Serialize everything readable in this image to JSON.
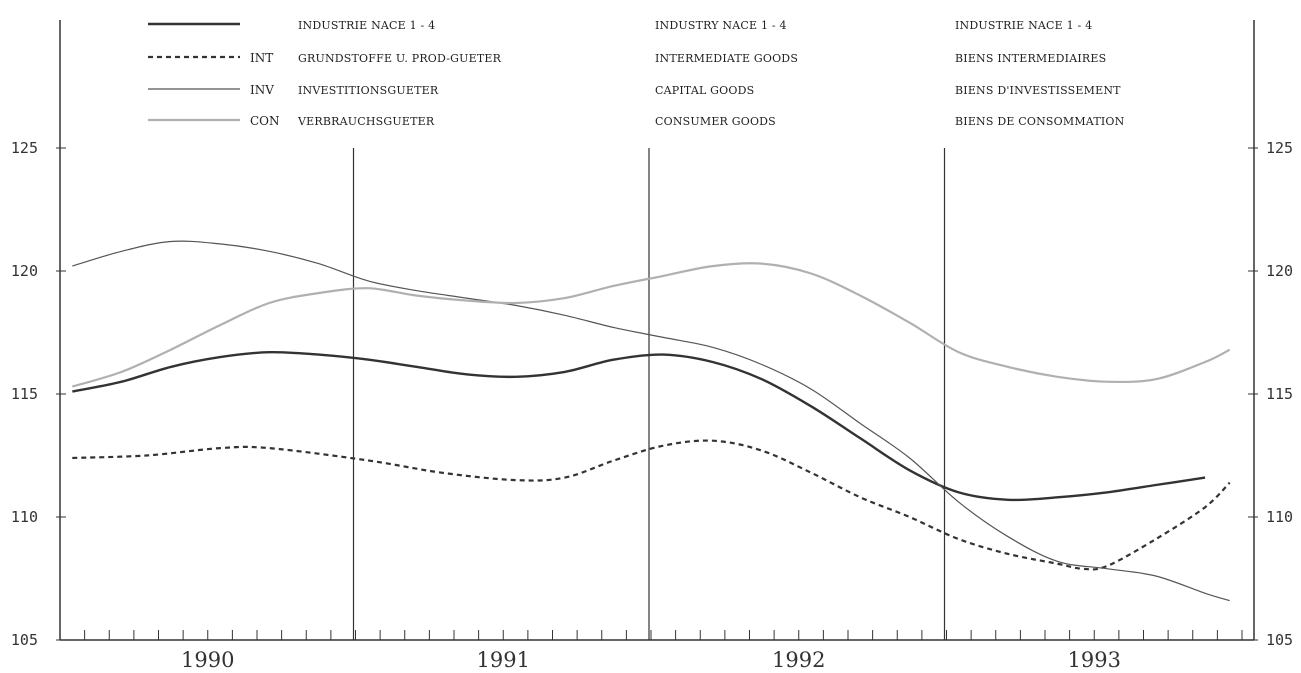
{
  "chart_data": {
    "type": "line",
    "x_unit": "month",
    "x_start": "1990-01",
    "years": [
      "1990",
      "1991",
      "1992",
      "1993"
    ],
    "ylim": [
      105,
      125
    ],
    "yticks": [
      "105",
      "110",
      "115",
      "120",
      "125"
    ],
    "grid": false,
    "legend": {
      "placement": "top",
      "columns": [
        "de",
        "en",
        "fr"
      ],
      "rows": [
        {
          "series": "industrie",
          "code": "",
          "de": "INDUSTRIE NACE 1 - 4",
          "en": "INDUSTRY NACE 1 - 4",
          "fr": "INDUSTRIE NACE 1 - 4"
        },
        {
          "series": "int",
          "code": "INT",
          "de": "GRUNDSTOFFE U. PROD-GUETER",
          "en": "INTERMEDIATE GOODS",
          "fr": "BIENS INTERMEDIAIRES"
        },
        {
          "series": "inv",
          "code": "INV",
          "de": "INVESTITIONSGUETER",
          "en": "CAPITAL GOODS",
          "fr": "BIENS D'INVESTISSEMENT"
        },
        {
          "series": "con",
          "code": "CON",
          "de": "VERBRAUCHSGUETER",
          "en": "CONSUMER GOODS",
          "fr": "BIENS DE CONSOMMATION"
        }
      ]
    },
    "series": [
      {
        "id": "industrie",
        "style": "solid-thick",
        "color": "#333333",
        "points": [
          [
            0,
            115.1
          ],
          [
            2,
            115.5
          ],
          [
            4,
            116.1
          ],
          [
            6,
            116.5
          ],
          [
            8,
            116.7
          ],
          [
            10,
            116.6
          ],
          [
            12,
            116.4
          ],
          [
            14,
            116.1
          ],
          [
            16,
            115.8
          ],
          [
            18,
            115.7
          ],
          [
            20,
            115.9
          ],
          [
            22,
            116.4
          ],
          [
            24,
            116.6
          ],
          [
            26,
            116.3
          ],
          [
            28,
            115.6
          ],
          [
            30,
            114.5
          ],
          [
            32,
            113.2
          ],
          [
            34,
            111.9
          ],
          [
            36,
            111.0
          ],
          [
            38,
            110.7
          ],
          [
            40,
            110.8
          ],
          [
            42,
            111.0
          ],
          [
            44,
            111.3
          ],
          [
            46,
            111.6
          ]
        ]
      },
      {
        "id": "int",
        "style": "dashed",
        "color": "#333333",
        "points": [
          [
            0,
            112.4
          ],
          [
            3,
            112.5
          ],
          [
            6,
            112.8
          ],
          [
            8,
            112.8
          ],
          [
            12,
            112.3
          ],
          [
            15,
            111.8
          ],
          [
            18,
            111.5
          ],
          [
            20,
            111.6
          ],
          [
            22,
            112.3
          ],
          [
            24,
            112.9
          ],
          [
            26,
            113.1
          ],
          [
            28,
            112.7
          ],
          [
            30,
            111.8
          ],
          [
            32,
            110.8
          ],
          [
            34,
            110.0
          ],
          [
            36,
            109.1
          ],
          [
            38,
            108.5
          ],
          [
            40,
            108.1
          ],
          [
            41,
            107.9
          ],
          [
            42,
            108.0
          ],
          [
            44,
            109.1
          ],
          [
            46,
            110.4
          ],
          [
            47,
            111.4
          ]
        ]
      },
      {
        "id": "inv",
        "style": "solid-thin",
        "color": "#555555",
        "points": [
          [
            0,
            120.2
          ],
          [
            2,
            120.8
          ],
          [
            4,
            121.2
          ],
          [
            6,
            121.1
          ],
          [
            8,
            120.8
          ],
          [
            10,
            120.3
          ],
          [
            12,
            119.6
          ],
          [
            14,
            119.2
          ],
          [
            16,
            118.9
          ],
          [
            18,
            118.6
          ],
          [
            20,
            118.2
          ],
          [
            22,
            117.7
          ],
          [
            24,
            117.3
          ],
          [
            26,
            116.9
          ],
          [
            28,
            116.2
          ],
          [
            30,
            115.2
          ],
          [
            32,
            113.8
          ],
          [
            34,
            112.4
          ],
          [
            36,
            110.6
          ],
          [
            38,
            109.2
          ],
          [
            40,
            108.2
          ],
          [
            42,
            107.9
          ],
          [
            44,
            107.6
          ],
          [
            46,
            106.9
          ],
          [
            47,
            106.6
          ]
        ]
      },
      {
        "id": "con",
        "style": "solid-light",
        "color": "#b0b0b0",
        "points": [
          [
            0,
            115.3
          ],
          [
            2,
            115.9
          ],
          [
            4,
            116.8
          ],
          [
            6,
            117.8
          ],
          [
            8,
            118.7
          ],
          [
            10,
            119.1
          ],
          [
            12,
            119.3
          ],
          [
            14,
            119.0
          ],
          [
            16,
            118.8
          ],
          [
            18,
            118.7
          ],
          [
            20,
            118.9
          ],
          [
            22,
            119.4
          ],
          [
            24,
            119.8
          ],
          [
            26,
            120.2
          ],
          [
            28,
            120.3
          ],
          [
            30,
            119.9
          ],
          [
            32,
            119.0
          ],
          [
            34,
            117.9
          ],
          [
            36,
            116.7
          ],
          [
            38,
            116.1
          ],
          [
            40,
            115.7
          ],
          [
            42,
            115.5
          ],
          [
            44,
            115.6
          ],
          [
            46,
            116.3
          ],
          [
            47,
            116.8
          ]
        ]
      }
    ]
  }
}
